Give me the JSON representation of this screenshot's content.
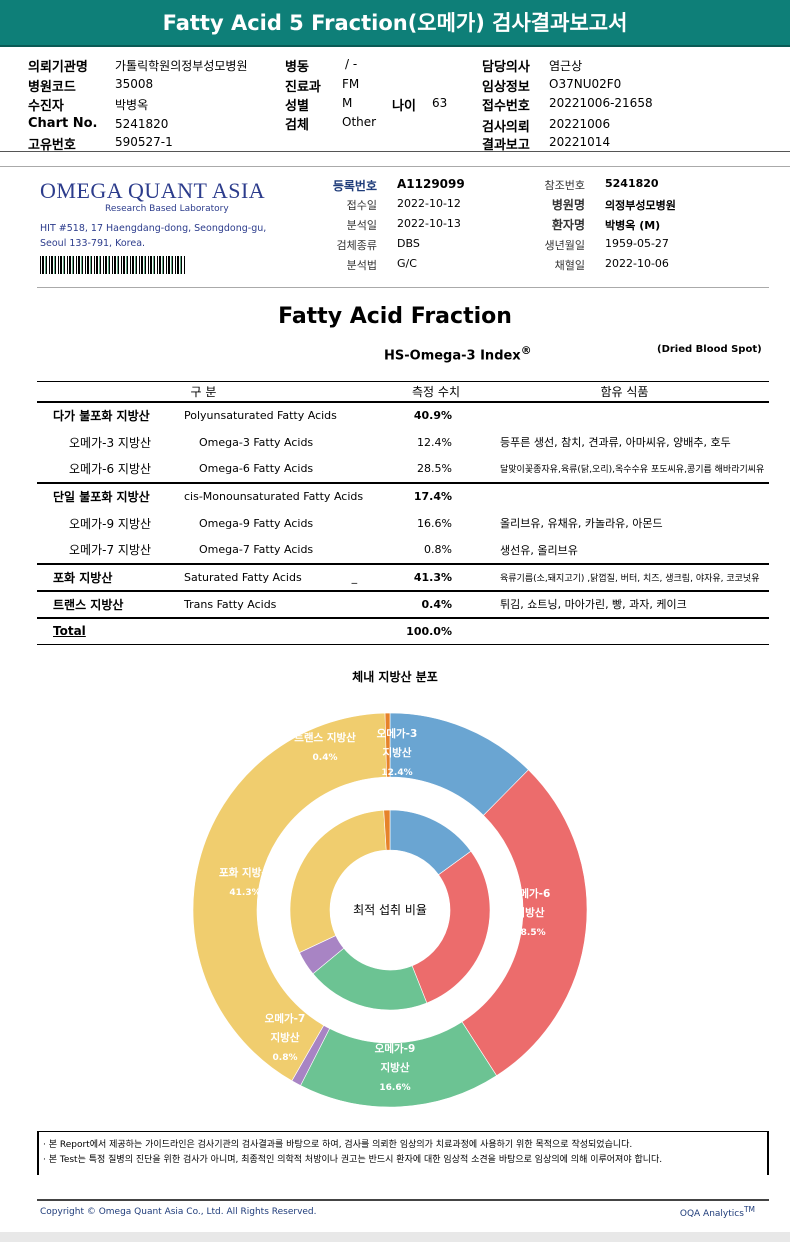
{
  "title": "Fatty Acid 5 Fraction(오메가) 검사결과보고서",
  "info": {
    "institution_label": "의뢰기관명",
    "institution": "가톨릭학원의정부성모병원",
    "hospital_code_label": "병원코드",
    "hospital_code": "35008",
    "patient_label": "수진자",
    "patient": "박병옥",
    "chart_label": "Chart No.",
    "chart": "5241820",
    "unique_label": "고유번호",
    "unique": "590527-1",
    "ward_label": "병동",
    "ward": "/ -",
    "dept_label": "진료과",
    "dept": "FM",
    "sex_label": "성별",
    "sex": "M",
    "age_label": "나이",
    "age": "63",
    "specimen_label": "검체",
    "specimen": "Other",
    "doctor_label": "담당의사",
    "doctor": "염근상",
    "clinical_label": "임상정보",
    "clinical": "O37NU02F0",
    "receipt_label": "접수번호",
    "receipt": "20221006-21658",
    "request_label": "검사의뢰",
    "request": "20221006",
    "report_label": "결과보고",
    "report": "20221014"
  },
  "lab": {
    "name_main": "OMEGA QUANT ASIA",
    "tagline": "Research Based Laboratory",
    "address1": "HIT #518, 17 Haengdang-dong, Seongdong-gu,",
    "address2": "Seoul 133-791, Korea."
  },
  "registration": {
    "reg_no_label": "등록번호",
    "reg_no": "A1129099",
    "received_label": "접수일",
    "received": "2022-10-12",
    "analyzed_label": "분석일",
    "analyzed": "2022-10-13",
    "sample_type_label": "검체종류",
    "sample_type": "DBS",
    "method_label": "분석법",
    "method": "G/C",
    "ref_label": "참조번호",
    "ref": "5241820",
    "hospital_label": "병원명",
    "hospital": "의정부성모병원",
    "patient_label": "환자명",
    "patient": "박병옥 (M)",
    "birth_label": "생년월일",
    "birth": "1959-05-27",
    "collected_label": "채혈일",
    "collected": "2022-10-06"
  },
  "report_title": "Fatty Acid Fraction",
  "index_title": "HS-Omega-3 Index",
  "index_sup": "®",
  "sample_note": "(Dried Blood Spot)",
  "table": {
    "headers": [
      "구 분",
      "측정 수치",
      "함유 식품"
    ],
    "rows": [
      {
        "ko": "다가 불포화 지방산",
        "en": "Polyunsaturated Fatty Acids",
        "value": "40.9%",
        "food": "",
        "main": true
      },
      {
        "ko": "오메가-3 지방산",
        "en": "Omega-3 Fatty Acids",
        "value": "12.4%",
        "food": "등푸른 생선, 참치, 견과류, 아마씨유, 양배추, 호두"
      },
      {
        "ko": "오메가-6 지방산",
        "en": "Omega-6 Fatty Acids",
        "value": "28.5%",
        "food": "달맞이꽃종자유,육류(닭,오리),옥수수유 포도씨유,콩기름 해바라기씨유",
        "small": true
      },
      {
        "ko": "단일 불포화 지방산",
        "en": "cis-Monounsaturated Fatty Acids",
        "value": "17.4%",
        "food": "",
        "main": true
      },
      {
        "ko": "오메가-9 지방산",
        "en": "Omega-9 Fatty Acids",
        "value": "16.6%",
        "food": "올리브유, 유채유, 카놀라유, 아몬드"
      },
      {
        "ko": "오메가-7 지방산",
        "en": "Omega-7 Fatty Acids",
        "value": "0.8%",
        "food": "생선유, 올리브유"
      },
      {
        "ko": "포화 지방산",
        "en": "Saturated Fatty Acids",
        "value": "41.3%",
        "food": "육류기름(소,돼지고기) ,닭껍질, 버터, 치즈, 생크림, 야자유, 코코넛유",
        "main": true,
        "small": true,
        "mark": "_"
      },
      {
        "ko": "트랜스 지방산",
        "en": "Trans Fatty Acids",
        "value": "0.4%",
        "food": "튀김, 쇼트닝, 마아가린, 빵, 과자, 케이크",
        "main": true
      }
    ],
    "total_label": "Total",
    "total_value": "100.0%"
  },
  "chart_data": {
    "type": "pie",
    "title": "체내 지방산 분포",
    "center_label": "최적 섭취 비율",
    "categories": [
      "오메가-3 지방산",
      "오메가-6 지방산",
      "오메가-9 지방산",
      "오메가-7 지방산",
      "포화 지방산",
      "트랜스 지방산"
    ],
    "colors": [
      "#6aa5d2",
      "#ec6c6c",
      "#6cc393",
      "#a884c4",
      "#f0cd6e",
      "#e6822a"
    ],
    "outer_values": [
      12.4,
      28.5,
      16.6,
      0.8,
      41.3,
      0.4
    ],
    "outer_labels": [
      [
        "오메가-3",
        "지방산",
        "12.4%"
      ],
      [
        "오메가-6",
        "지방산",
        "28.5%"
      ],
      [
        "오메가-9",
        "지방산",
        "16.6%"
      ],
      [
        "오메가-7",
        "지방산",
        "0.8%"
      ],
      [
        "포화 지방산",
        "41.3%"
      ],
      [
        "트랜스 지방산",
        "0.4%"
      ]
    ],
    "inner_values": [
      15,
      29,
      20,
      4,
      31,
      1
    ]
  },
  "notes": [
    "· 본 Report에서 제공하는 가이드라인은 검사기관의 검사결과를 바탕으로 하여, 검사를 의뢰한 임상의가 치료과정에 사용하기 위한 목적으로 작성되었습니다.",
    "· 본 Test는 특정 질병의 진단을 위한 검사가 아니며, 최종적인 의학적 처방이나 권고는 반드시 환자에 대한 임상적 소견을 바탕으로 임상의에 의해 이루어져야 합니다."
  ],
  "footer": {
    "copyright": "Copyright © Omega Quant Asia Co., Ltd.  All Rights Reserved.",
    "brand": "OQA Analytics",
    "brand_sup": "TM"
  }
}
